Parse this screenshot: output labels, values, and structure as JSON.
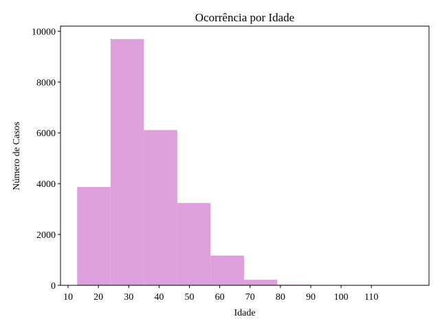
{
  "chart_data": {
    "type": "bar",
    "title": "Ocorrência por Idade",
    "xlabel": "Idade",
    "ylabel": "Número de Casos",
    "bins": [
      {
        "start": 13,
        "end": 24,
        "value": 3870
      },
      {
        "start": 24,
        "end": 35,
        "value": 9690
      },
      {
        "start": 35,
        "end": 46,
        "value": 6110
      },
      {
        "start": 46,
        "end": 57,
        "value": 3240
      },
      {
        "start": 57,
        "end": 68,
        "value": 1170
      },
      {
        "start": 68,
        "end": 79,
        "value": 220
      },
      {
        "start": 79,
        "end": 90,
        "value": 25
      },
      {
        "start": 90,
        "end": 101,
        "value": 3
      },
      {
        "start": 101,
        "end": 112,
        "value": 1
      },
      {
        "start": 112,
        "end": 123,
        "value": 1
      }
    ],
    "xticks": [
      10,
      20,
      30,
      40,
      50,
      60,
      70,
      80,
      90,
      100,
      110
    ],
    "yticks": [
      0,
      2000,
      4000,
      6000,
      8000,
      10000
    ],
    "xlim": [
      7.5,
      129
    ],
    "ylim": [
      0,
      10200
    ],
    "bar_color": "#dda0dd",
    "grid": false,
    "legend": "none"
  }
}
